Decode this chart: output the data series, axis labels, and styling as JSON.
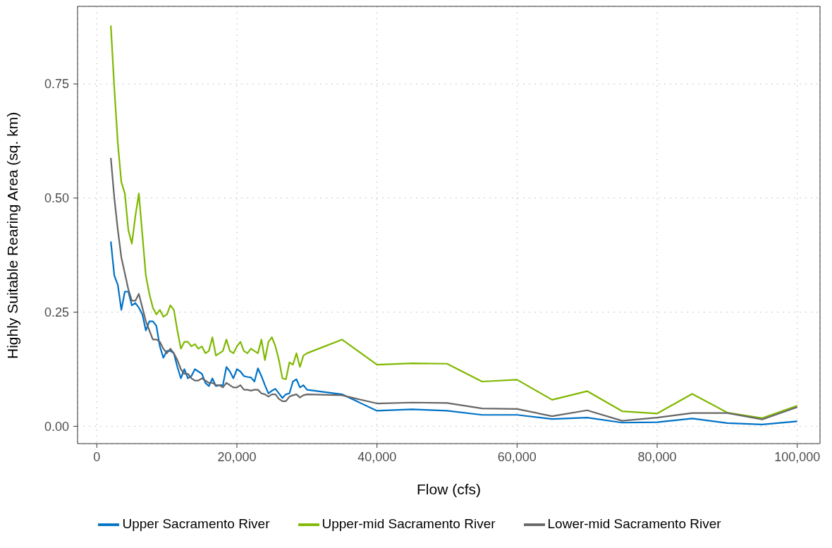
{
  "chart_data": {
    "type": "line",
    "xlabel": "Flow (cfs)",
    "ylabel": "Highly Suitable Rearing Area (sq. km)",
    "x": [
      2000,
      2500,
      3000,
      3500,
      4000,
      4500,
      5000,
      5500,
      6000,
      6500,
      7000,
      7500,
      8000,
      8500,
      9000,
      9500,
      10000,
      10500,
      11000,
      11500,
      12000,
      12500,
      13000,
      13500,
      14000,
      14500,
      15000,
      15500,
      16000,
      16500,
      17000,
      17500,
      18000,
      18500,
      19000,
      19500,
      20000,
      20500,
      21000,
      21500,
      22000,
      22500,
      23000,
      23500,
      24000,
      24500,
      25000,
      25500,
      26000,
      26500,
      27000,
      27500,
      28000,
      28500,
      29000,
      29500,
      30000,
      35000,
      40000,
      45000,
      50000,
      55000,
      60000,
      65000,
      70000,
      75000,
      80000,
      85000,
      90000,
      95000,
      100000
    ],
    "series": [
      {
        "name": "Upper Sacramento River",
        "color": "#0072c6",
        "values": [
          0.405,
          0.33,
          0.31,
          0.255,
          0.295,
          0.295,
          0.265,
          0.27,
          0.26,
          0.245,
          0.21,
          0.23,
          0.23,
          0.22,
          0.175,
          0.15,
          0.165,
          0.165,
          0.16,
          0.13,
          0.105,
          0.125,
          0.105,
          0.11,
          0.125,
          0.12,
          0.115,
          0.095,
          0.088,
          0.105,
          0.088,
          0.09,
          0.09,
          0.13,
          0.12,
          0.105,
          0.125,
          0.12,
          0.11,
          0.108,
          0.107,
          0.098,
          0.127,
          0.11,
          0.09,
          0.072,
          0.078,
          0.082,
          0.072,
          0.062,
          0.07,
          0.072,
          0.098,
          0.103,
          0.085,
          0.09,
          0.08,
          0.07,
          0.034,
          0.037,
          0.034,
          0.025,
          0.025,
          0.016,
          0.019,
          0.008,
          0.009,
          0.017,
          0.007,
          0.004,
          0.011
        ]
      },
      {
        "name": "Upper-mid Sacramento River",
        "color": "#7fb800",
        "values": [
          0.878,
          0.74,
          0.62,
          0.535,
          0.51,
          0.43,
          0.4,
          0.46,
          0.51,
          0.42,
          0.33,
          0.29,
          0.26,
          0.245,
          0.255,
          0.24,
          0.245,
          0.265,
          0.255,
          0.21,
          0.17,
          0.185,
          0.185,
          0.175,
          0.18,
          0.17,
          0.175,
          0.16,
          0.165,
          0.195,
          0.155,
          0.16,
          0.165,
          0.19,
          0.165,
          0.16,
          0.175,
          0.185,
          0.165,
          0.16,
          0.17,
          0.165,
          0.16,
          0.19,
          0.145,
          0.185,
          0.195,
          0.175,
          0.145,
          0.105,
          0.103,
          0.14,
          0.135,
          0.16,
          0.13,
          0.155,
          0.16,
          0.19,
          0.135,
          0.138,
          0.137,
          0.098,
          0.102,
          0.058,
          0.077,
          0.033,
          0.028,
          0.071,
          0.03,
          0.018,
          0.045
        ]
      },
      {
        "name": "Lower-mid Sacramento River",
        "color": "#666666",
        "values": [
          0.588,
          0.5,
          0.43,
          0.37,
          0.335,
          0.3,
          0.275,
          0.275,
          0.29,
          0.26,
          0.23,
          0.21,
          0.19,
          0.19,
          0.185,
          0.17,
          0.16,
          0.17,
          0.16,
          0.145,
          0.125,
          0.115,
          0.115,
          0.105,
          0.1,
          0.1,
          0.105,
          0.1,
          0.095,
          0.095,
          0.09,
          0.09,
          0.085,
          0.095,
          0.09,
          0.085,
          0.085,
          0.09,
          0.08,
          0.08,
          0.078,
          0.08,
          0.08,
          0.072,
          0.07,
          0.065,
          0.07,
          0.07,
          0.06,
          0.055,
          0.055,
          0.065,
          0.068,
          0.07,
          0.063,
          0.068,
          0.07,
          0.068,
          0.05,
          0.052,
          0.051,
          0.039,
          0.038,
          0.022,
          0.035,
          0.012,
          0.019,
          0.029,
          0.029,
          0.015,
          0.042
        ]
      }
    ],
    "xlim": [
      -2750,
      103250
    ],
    "ylim": [
      -0.038,
      0.92
    ],
    "xticks": [
      {
        "value": 0,
        "label": "0"
      },
      {
        "value": 20000,
        "label": "20,000"
      },
      {
        "value": 40000,
        "label": "40,000"
      },
      {
        "value": 60000,
        "label": "60,000"
      },
      {
        "value": 80000,
        "label": "80,000"
      },
      {
        "value": 100000,
        "label": "100,000"
      }
    ],
    "yticks": [
      {
        "value": 0,
        "label": "0.00"
      },
      {
        "value": 0.25,
        "label": "0.25"
      },
      {
        "value": 0.5,
        "label": "0.50"
      },
      {
        "value": 0.75,
        "label": "0.75"
      }
    ],
    "grid": true,
    "legend": "bottom"
  }
}
